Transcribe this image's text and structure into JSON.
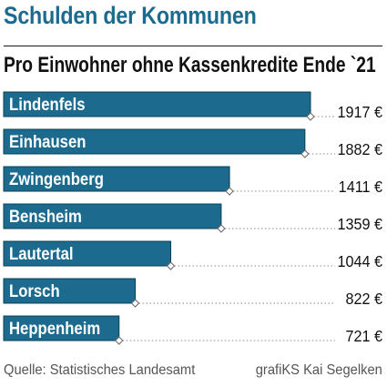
{
  "chart_data": {
    "type": "bar",
    "orientation": "horizontal",
    "title": "Schulden der Kommunen",
    "subtitle": "Pro Einwohner ohne Kassenkredite Ende `21",
    "categories": [
      "Lindenfels",
      "Einhausen",
      "Zwingenberg",
      "Bensheim",
      "Lautertal",
      "Lorsch",
      "Heppenheim"
    ],
    "values": [
      1917,
      1882,
      1411,
      1359,
      1044,
      822,
      721
    ],
    "value_labels": [
      "1917 €",
      "1882 €",
      "1411 €",
      "1359 €",
      "1044 €",
      "822 €",
      "721 €"
    ],
    "unit": "€",
    "bar_color": "#1c6b8f",
    "grid": false,
    "legend": "none"
  },
  "footer": {
    "source": "Quelle: Statistisches Landesamt",
    "credit": "grafiKS Kai Segelken"
  },
  "colors": {
    "accent": "#1c6b8f",
    "bar_outline": "#0d3f56",
    "text": "#111111",
    "source_text": "#555555"
  }
}
